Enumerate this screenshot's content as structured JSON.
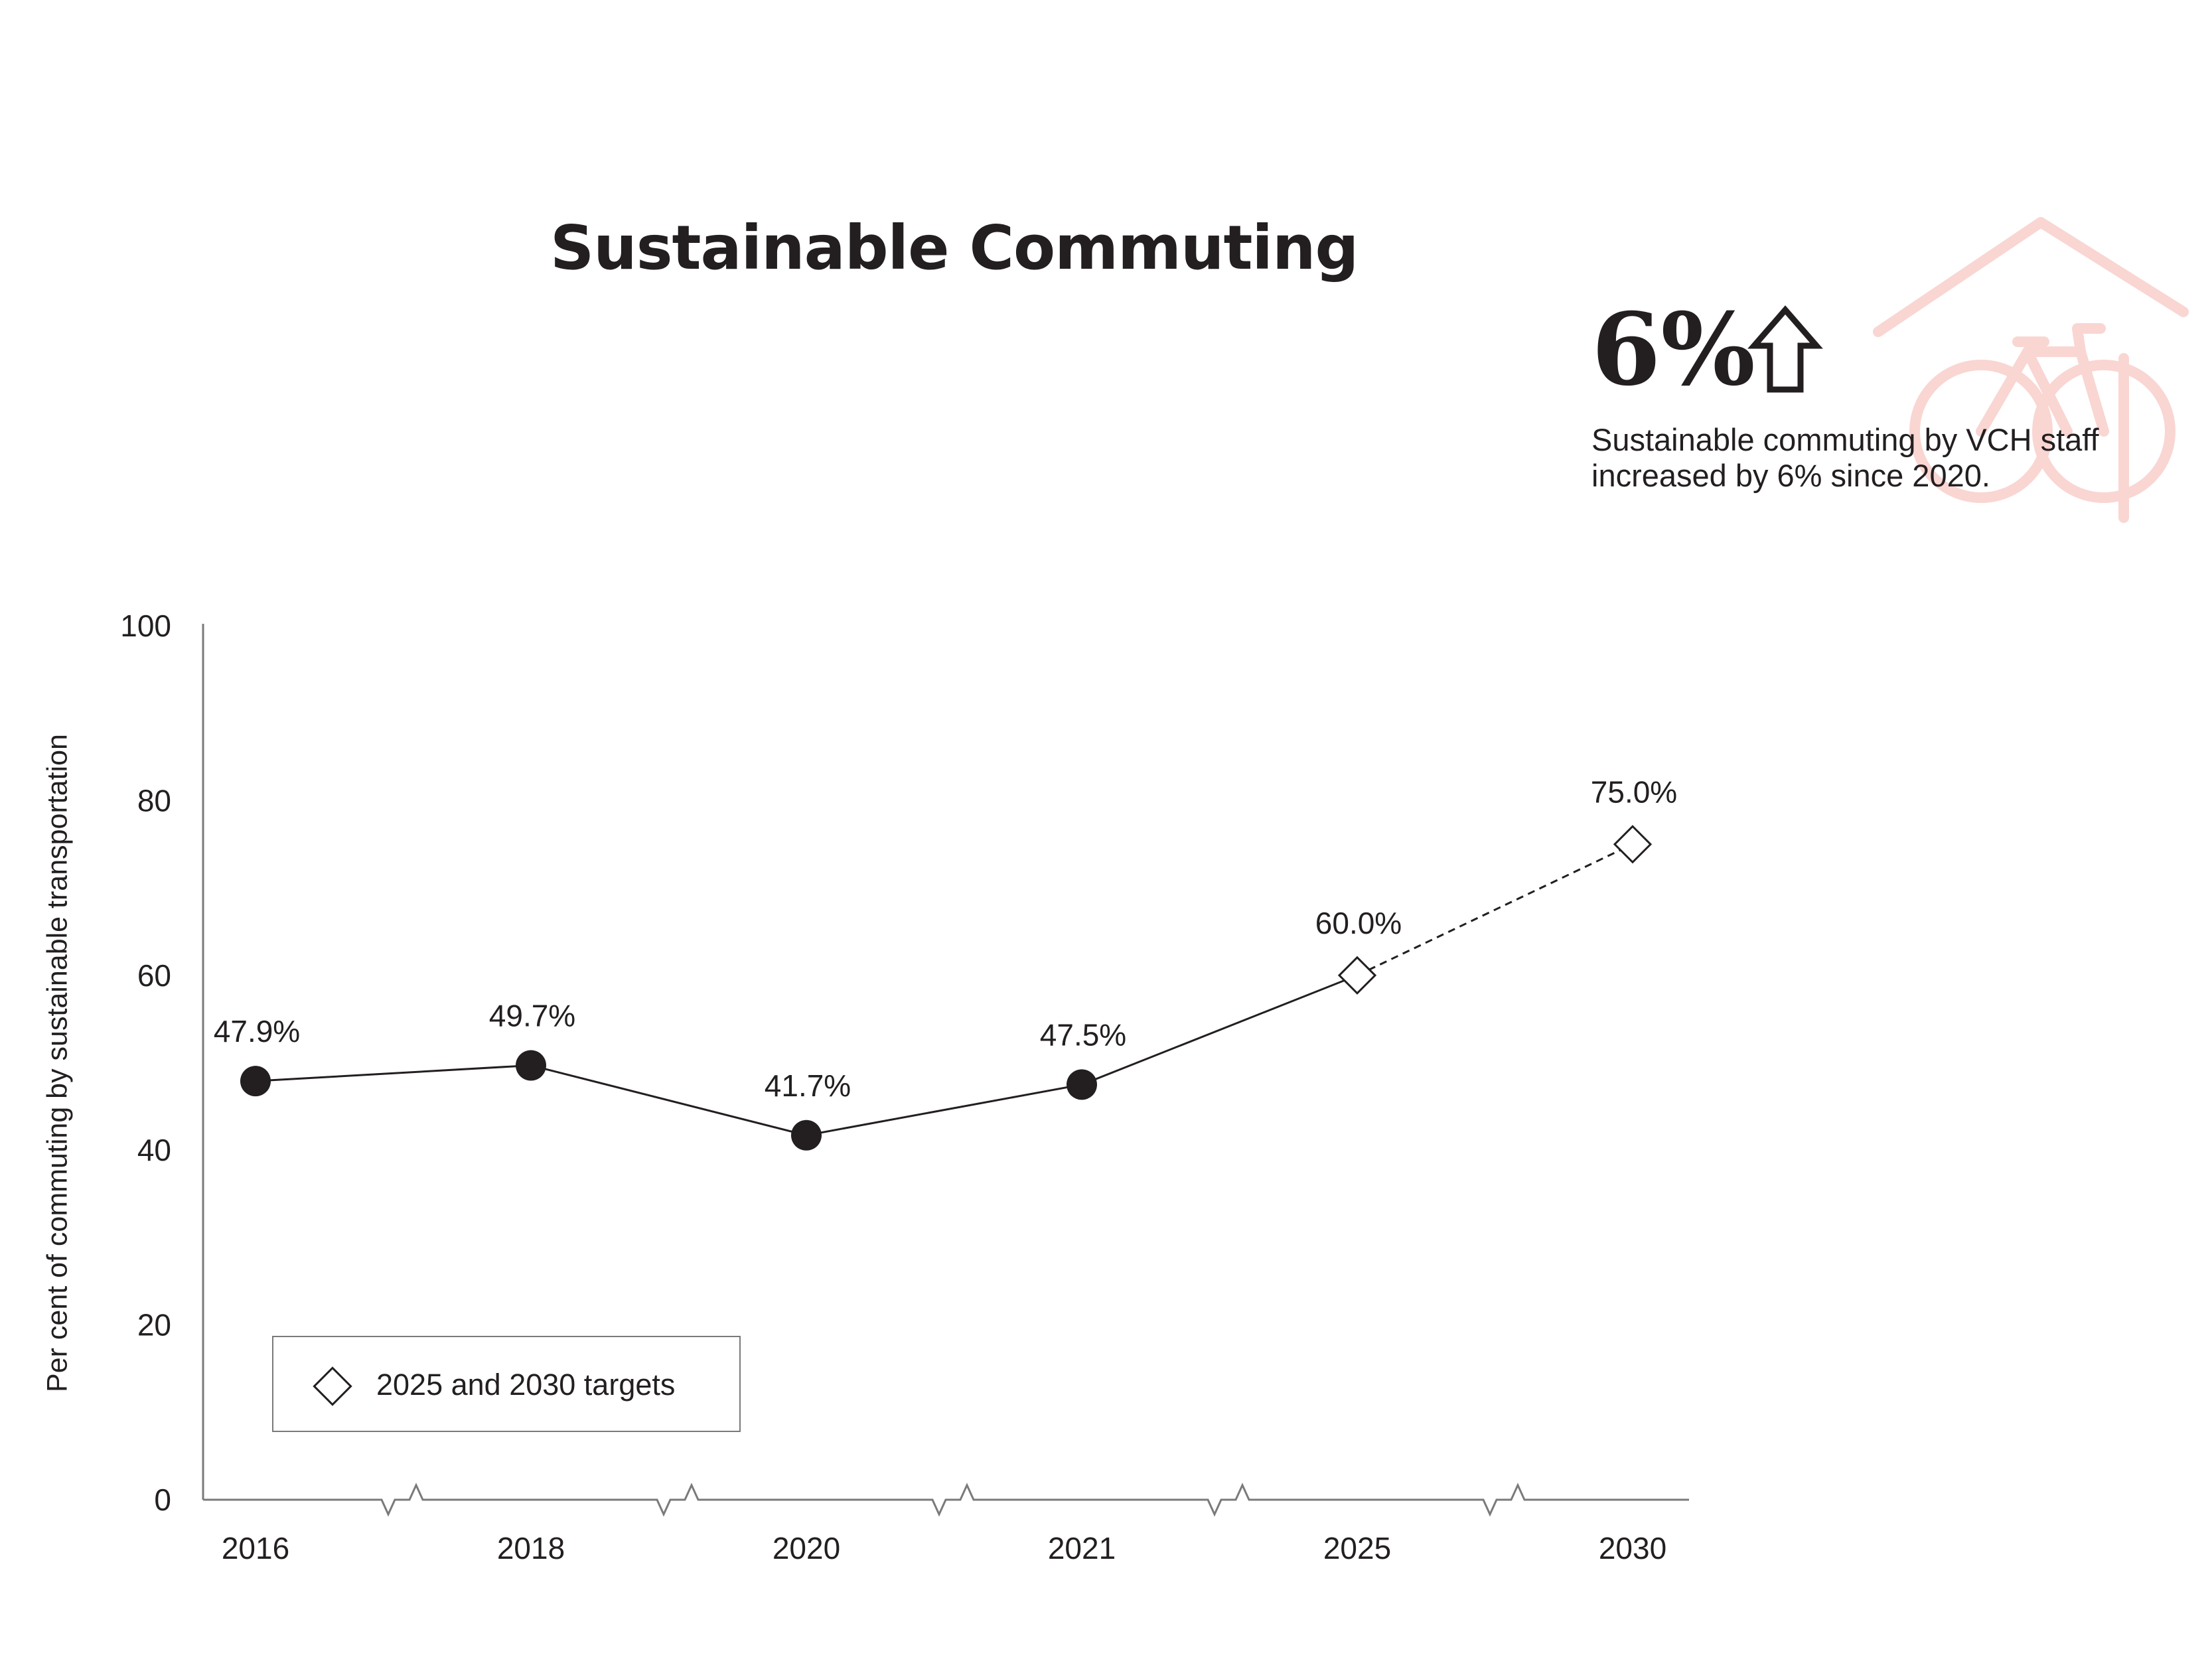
{
  "title": "Sustainable Commuting",
  "callout": {
    "value": "6%",
    "caption_lines": [
      "Sustainable commuting by VCH staff",
      "increased by 6% since 2020."
    ],
    "icon": "arrow-up-icon",
    "decoration_icon": "bicycle-house-icon",
    "decoration_color": "#f9d6d2"
  },
  "legend": {
    "label": "2025 and 2030 targets",
    "icon": "diamond-marker-icon"
  },
  "chart_data": {
    "type": "line",
    "ylabel": "Per cent of commuting by sustainable transportation",
    "xlabel": "",
    "ylim": [
      0,
      100
    ],
    "yticks": [
      0,
      20,
      40,
      60,
      80,
      100
    ],
    "categories": [
      "2016",
      "2018",
      "2020",
      "2021",
      "2025",
      "2030"
    ],
    "axis_break": true,
    "series": [
      {
        "kind": "actual",
        "marker": "filled-circle",
        "line": "solid",
        "points": [
          {
            "x": "2016",
            "y": 47.9,
            "label": "47.9%"
          },
          {
            "x": "2018",
            "y": 49.7,
            "label": "49.7%"
          },
          {
            "x": "2020",
            "y": 41.7,
            "label": "41.7%"
          },
          {
            "x": "2021",
            "y": 47.5,
            "label": "47.5%"
          }
        ]
      },
      {
        "name": "2025 and 2030 targets",
        "kind": "target",
        "marker": "open-diamond",
        "line": "dashed",
        "points": [
          {
            "x": "2025",
            "y": 60.0,
            "label": "60.0%"
          },
          {
            "x": "2030",
            "y": 75.0,
            "label": "75.0%"
          }
        ]
      }
    ],
    "colors": {
      "ink": "#231f20",
      "axis": "#7a7a7a"
    }
  }
}
